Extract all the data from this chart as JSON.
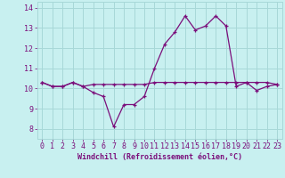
{
  "x": [
    0,
    1,
    2,
    3,
    4,
    5,
    6,
    7,
    8,
    9,
    10,
    11,
    12,
    13,
    14,
    15,
    16,
    17,
    18,
    19,
    20,
    21,
    22,
    23
  ],
  "windchill": [
    10.3,
    10.1,
    10.1,
    10.3,
    10.1,
    9.8,
    9.6,
    8.1,
    9.2,
    9.2,
    9.6,
    11.0,
    12.2,
    12.8,
    13.6,
    12.9,
    13.1,
    13.6,
    13.1,
    10.1,
    10.3,
    9.9,
    10.1,
    10.2
  ],
  "temperature": [
    10.3,
    10.1,
    10.1,
    10.3,
    10.1,
    10.2,
    10.2,
    10.2,
    10.2,
    10.2,
    10.2,
    10.3,
    10.3,
    10.3,
    10.3,
    10.3,
    10.3,
    10.3,
    10.3,
    10.3,
    10.3,
    10.3,
    10.3,
    10.2
  ],
  "line_color": "#7b0e7b",
  "bg_color": "#c8f0f0",
  "grid_color": "#a8d8d8",
  "xlabel": "Windchill (Refroidissement éolien,°C)",
  "xlabel_color": "#7b0e7b",
  "ylim": [
    7.5,
    14.3
  ],
  "xlim": [
    -0.5,
    23.5
  ],
  "yticks": [
    8,
    9,
    10,
    11,
    12,
    13,
    14
  ],
  "xticks": [
    0,
    1,
    2,
    3,
    4,
    5,
    6,
    7,
    8,
    9,
    10,
    11,
    12,
    13,
    14,
    15,
    16,
    17,
    18,
    19,
    20,
    21,
    22,
    23
  ],
  "tick_fontsize": 6.0,
  "xlabel_fontsize": 6.0
}
